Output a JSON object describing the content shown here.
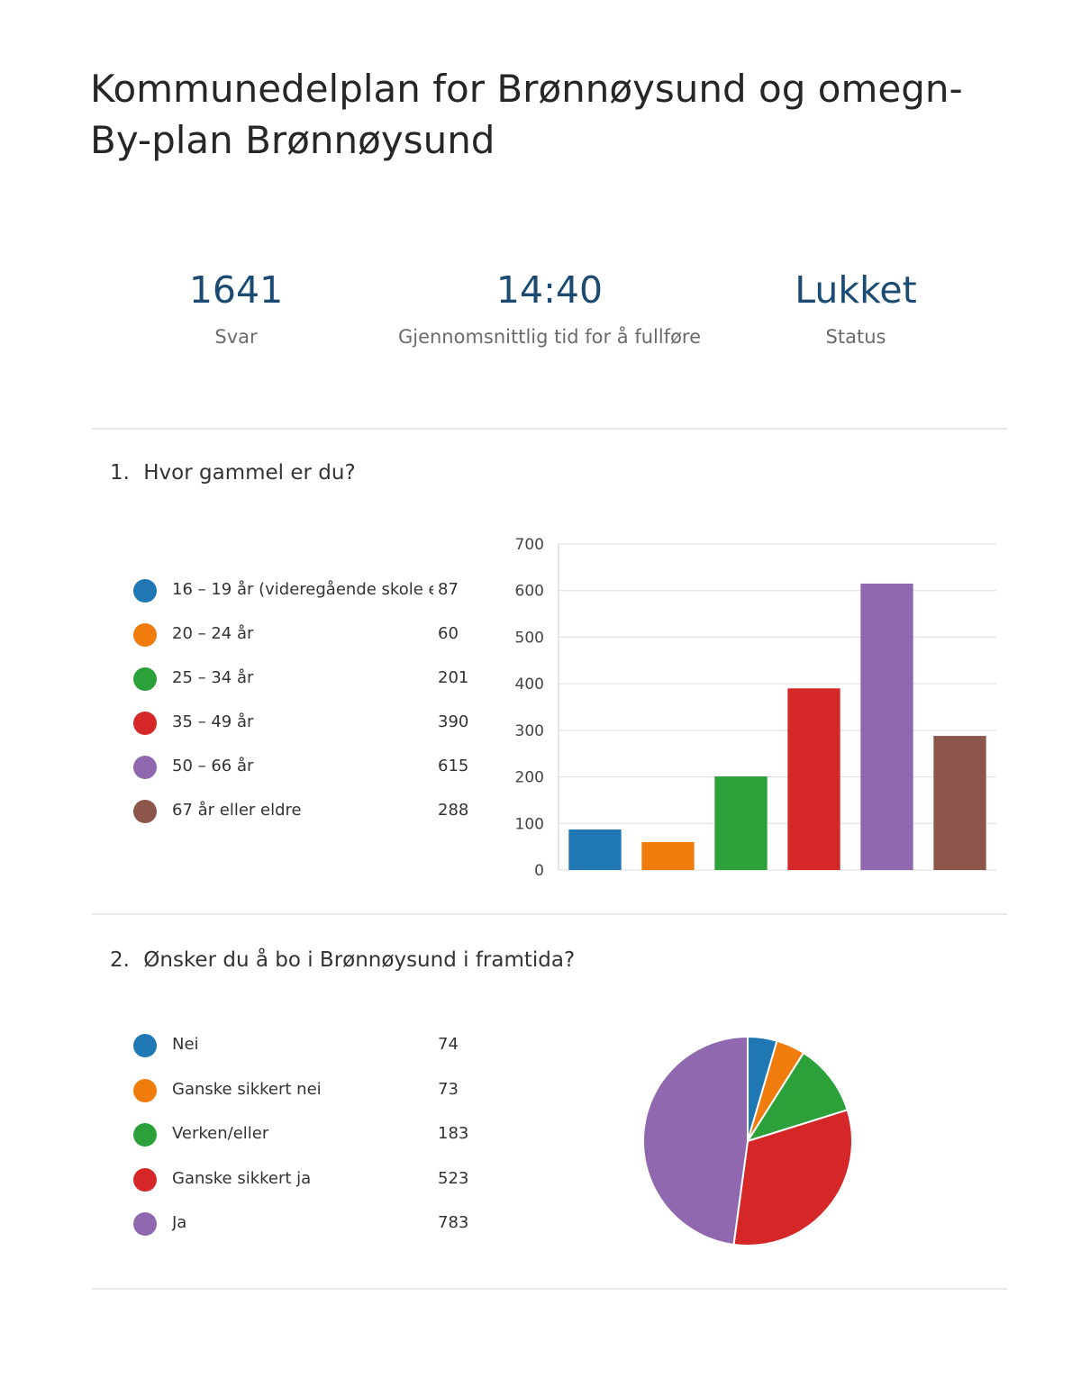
{
  "title": "Kommunedelplan for Brønnøysund og omegn- By-plan Brønnøysund",
  "stats": [
    {
      "value": "1641",
      "label": "Svar"
    },
    {
      "value": "14:40",
      "label": "Gjennomsnittlig tid for å fullføre"
    },
    {
      "value": "Lukket",
      "label": "Status"
    }
  ],
  "questions": [
    {
      "number": "1.",
      "text": "Hvor gammel er du?"
    },
    {
      "number": "2.",
      "text": "Ønsker du å bo i Brønnøysund i framtida?"
    }
  ],
  "chart_data": [
    {
      "type": "bar",
      "categories": [
        "16 – 19 år (videregående skole e...",
        "20 – 24 år",
        "25 – 34 år",
        "35 – 49 år",
        "50 – 66 år",
        "67 år eller eldre"
      ],
      "values": [
        87,
        60,
        201,
        390,
        615,
        288
      ],
      "colors": [
        "#1f77b4",
        "#f07c0e",
        "#2ca13a",
        "#d62728",
        "#9068af",
        "#8c564b"
      ],
      "yticks": [
        0,
        100,
        200,
        300,
        400,
        500,
        600,
        700
      ],
      "ylim": [
        0,
        700
      ],
      "grid": true,
      "legend_position": "left"
    },
    {
      "type": "pie",
      "categories": [
        "Nei",
        "Ganske sikkert nei",
        "Verken/eller",
        "Ganske sikkert ja",
        "Ja"
      ],
      "values": [
        74,
        73,
        183,
        523,
        783
      ],
      "colors": [
        "#1f77b4",
        "#f07c0e",
        "#2ca13a",
        "#d62728",
        "#9068af"
      ],
      "legend_position": "left"
    }
  ]
}
